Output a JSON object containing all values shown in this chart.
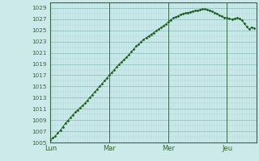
{
  "background_color": "#cceaea",
  "grid_minor_color": "#aad4d4",
  "grid_major_color": "#88bbbb",
  "line_color": "#1a5c1a",
  "marker_color": "#1a5c1a",
  "ylim": [
    1005,
    1030
  ],
  "ytick_major": [
    1005,
    1007,
    1009,
    1011,
    1013,
    1015,
    1017,
    1019,
    1021,
    1023,
    1025,
    1027,
    1029
  ],
  "day_labels": [
    "Lun",
    "Mar",
    "Mer",
    "Jeu"
  ],
  "day_positions": [
    0,
    24,
    48,
    72
  ],
  "n_hours": 84,
  "pressure_values": [
    1005.5,
    1005.8,
    1006.2,
    1006.7,
    1007.2,
    1007.8,
    1008.4,
    1008.9,
    1009.4,
    1009.9,
    1010.4,
    1010.8,
    1011.2,
    1011.6,
    1012.0,
    1012.5,
    1013.0,
    1013.5,
    1014.0,
    1014.5,
    1015.0,
    1015.5,
    1016.0,
    1016.5,
    1017.0,
    1017.5,
    1018.0,
    1018.5,
    1019.0,
    1019.4,
    1019.8,
    1020.2,
    1020.7,
    1021.2,
    1021.7,
    1022.2,
    1022.6,
    1023.0,
    1023.4,
    1023.7,
    1024.0,
    1024.3,
    1024.6,
    1024.9,
    1025.2,
    1025.5,
    1025.8,
    1026.1,
    1026.5,
    1026.9,
    1027.2,
    1027.4,
    1027.6,
    1027.8,
    1028.0,
    1028.1,
    1028.2,
    1028.3,
    1028.4,
    1028.5,
    1028.6,
    1028.7,
    1028.8,
    1028.8,
    1028.7,
    1028.6,
    1028.4,
    1028.2,
    1028.0,
    1027.7,
    1027.5,
    1027.3,
    1027.2,
    1027.1,
    1027.0,
    1027.1,
    1027.2,
    1027.1,
    1026.8,
    1026.3,
    1025.7,
    1025.2,
    1025.6,
    1025.4
  ]
}
